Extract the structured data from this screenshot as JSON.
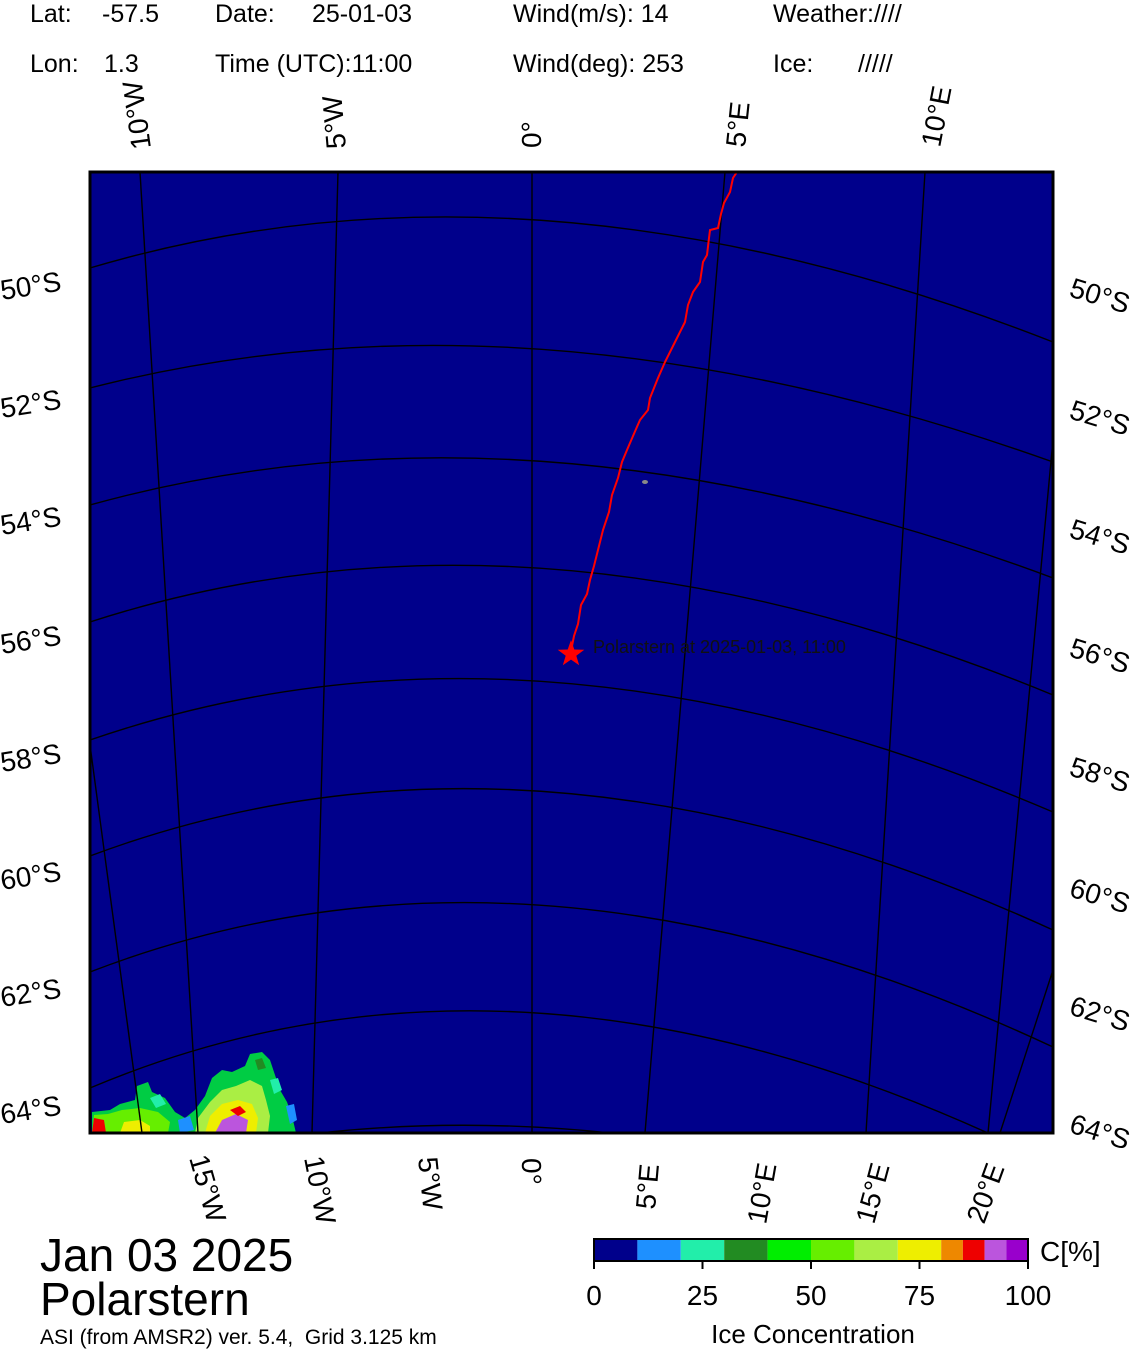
{
  "header": {
    "lat_label": "Lat:",
    "lat_value": "-57.5",
    "lon_label": "Lon:",
    "lon_value": "1.3",
    "date_label": "Date:",
    "date_value": "25-01-03",
    "time_label": "Time (UTC):",
    "time_value": "11:00",
    "wind_speed_label": "Wind(m/s):",
    "wind_speed_value": "14",
    "wind_dir_label": "Wind(deg):",
    "wind_dir_value": "253",
    "weather_label": "Weather:",
    "weather_value": "////",
    "ice_label": "Ice:",
    "ice_value": "/////"
  },
  "map": {
    "background_color": "#00008B",
    "grid_color": "#000000",
    "track_color": "#FF0000",
    "top_lon_labels": [
      "10°W",
      "5°W",
      "0°",
      "5°E",
      "10°E"
    ],
    "bottom_lon_labels": [
      "15°W",
      "10°W",
      "5°W",
      "0°",
      "5°E",
      "10°E",
      "15°E",
      "20°E"
    ],
    "left_lat_labels": [
      "50°S",
      "52°S",
      "54°S",
      "56°S",
      "58°S",
      "60°S",
      "62°S",
      "64°S"
    ],
    "right_lat_labels": [
      "50°S",
      "52°S",
      "54°S",
      "56°S",
      "58°S",
      "60°S",
      "62°S",
      "64°S"
    ],
    "ship_marker_label": "Polarstern at 2025-01-03, 11:00"
  },
  "title": {
    "date": "Jan 03 2025",
    "ship": "Polarstern",
    "credit": "ASI (from AMSR2) ver. 5.4,  Grid 3.125 km"
  },
  "colorbar": {
    "unit": "C[%]",
    "label": "Ice Concentration",
    "ticks": [
      "0",
      "25",
      "50",
      "75",
      "100"
    ],
    "colors": [
      "#00008B",
      "#1E90FF",
      "#22EEAA",
      "#228B22",
      "#00EE00",
      "#66EE00",
      "#AAEE44",
      "#EEEE00",
      "#EE8800",
      "#EE0000",
      "#BB55DD",
      "#9900CC"
    ]
  }
}
